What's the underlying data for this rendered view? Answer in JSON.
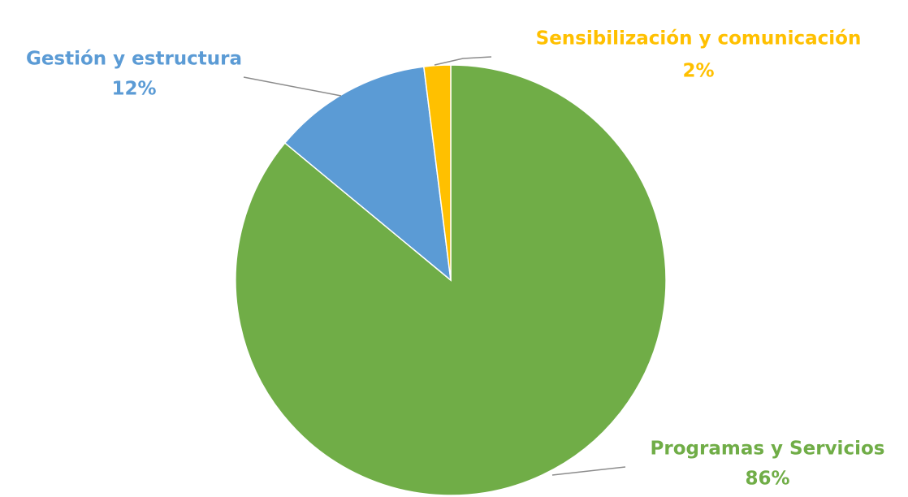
{
  "chart_data": {
    "type": "pie",
    "categories": [
      "Programas y Servicios",
      "Gestión y estructura",
      "Sensibilización y comunicación"
    ],
    "values": [
      86,
      12,
      2
    ],
    "value_labels": [
      "86%",
      "12%",
      "2%"
    ],
    "colors": [
      "#70ad47",
      "#5b9bd5",
      "#ffc000"
    ]
  }
}
